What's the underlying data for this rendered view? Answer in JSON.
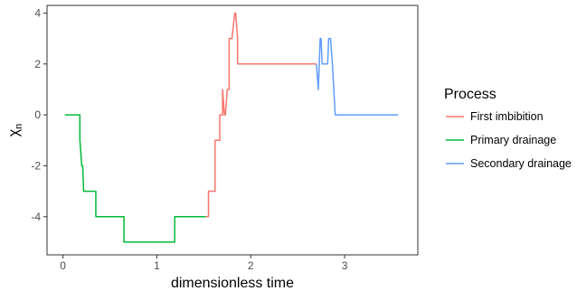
{
  "chart_data": {
    "type": "line",
    "xlabel": "dimensionless time",
    "ylabel": "χn",
    "ylabel_parts": {
      "base": "χ",
      "sub": "n"
    },
    "xlim": [
      -0.17,
      3.78
    ],
    "ylim": [
      -5.5,
      4.3
    ],
    "x_ticks": [
      0,
      1,
      2,
      3
    ],
    "x_tick_labels": [
      "0",
      "1",
      "2",
      "3"
    ],
    "y_ticks": [
      -4,
      -2,
      0,
      2,
      4
    ],
    "y_tick_labels": [
      "-4",
      "-2",
      "0",
      "2",
      "4"
    ],
    "grid": false,
    "legend_position": "right",
    "legend_title": "Process",
    "series": [
      {
        "name": "First imbibition",
        "color": "#F8766D",
        "x": [
          1.52,
          1.55,
          1.55,
          1.62,
          1.62,
          1.67,
          1.67,
          1.7,
          1.7,
          1.72,
          1.73,
          1.75,
          1.75,
          1.77,
          1.77,
          1.8,
          1.8,
          1.83,
          1.84,
          1.86,
          1.86,
          2.67,
          2.7
        ],
        "y": [
          -4,
          -4,
          -3,
          -3,
          -1,
          -1,
          0,
          0,
          1,
          0,
          0,
          1,
          1,
          1,
          3,
          3,
          3,
          4,
          4,
          3,
          2,
          2,
          2
        ]
      },
      {
        "name": "Primary drainage",
        "color": "#00BA38",
        "x": [
          0.02,
          0.18,
          0.18,
          0.2,
          0.2,
          0.21,
          0.22,
          0.35,
          0.35,
          0.65,
          0.65,
          1.19,
          1.19,
          1.52
        ],
        "y": [
          0,
          0,
          -1,
          -2,
          -2,
          -2,
          -3,
          -3,
          -4,
          -4,
          -5,
          -5,
          -4,
          -4
        ]
      },
      {
        "name": "Secondary drainage",
        "color": "#619CFF",
        "x": [
          2.7,
          2.72,
          2.73,
          2.74,
          2.75,
          2.76,
          2.78,
          2.81,
          2.82,
          2.83,
          2.85,
          2.87,
          2.9,
          3.57
        ],
        "y": [
          2,
          1,
          2,
          3,
          3,
          2,
          2,
          2,
          2,
          3,
          3,
          2,
          0,
          0
        ]
      }
    ]
  }
}
